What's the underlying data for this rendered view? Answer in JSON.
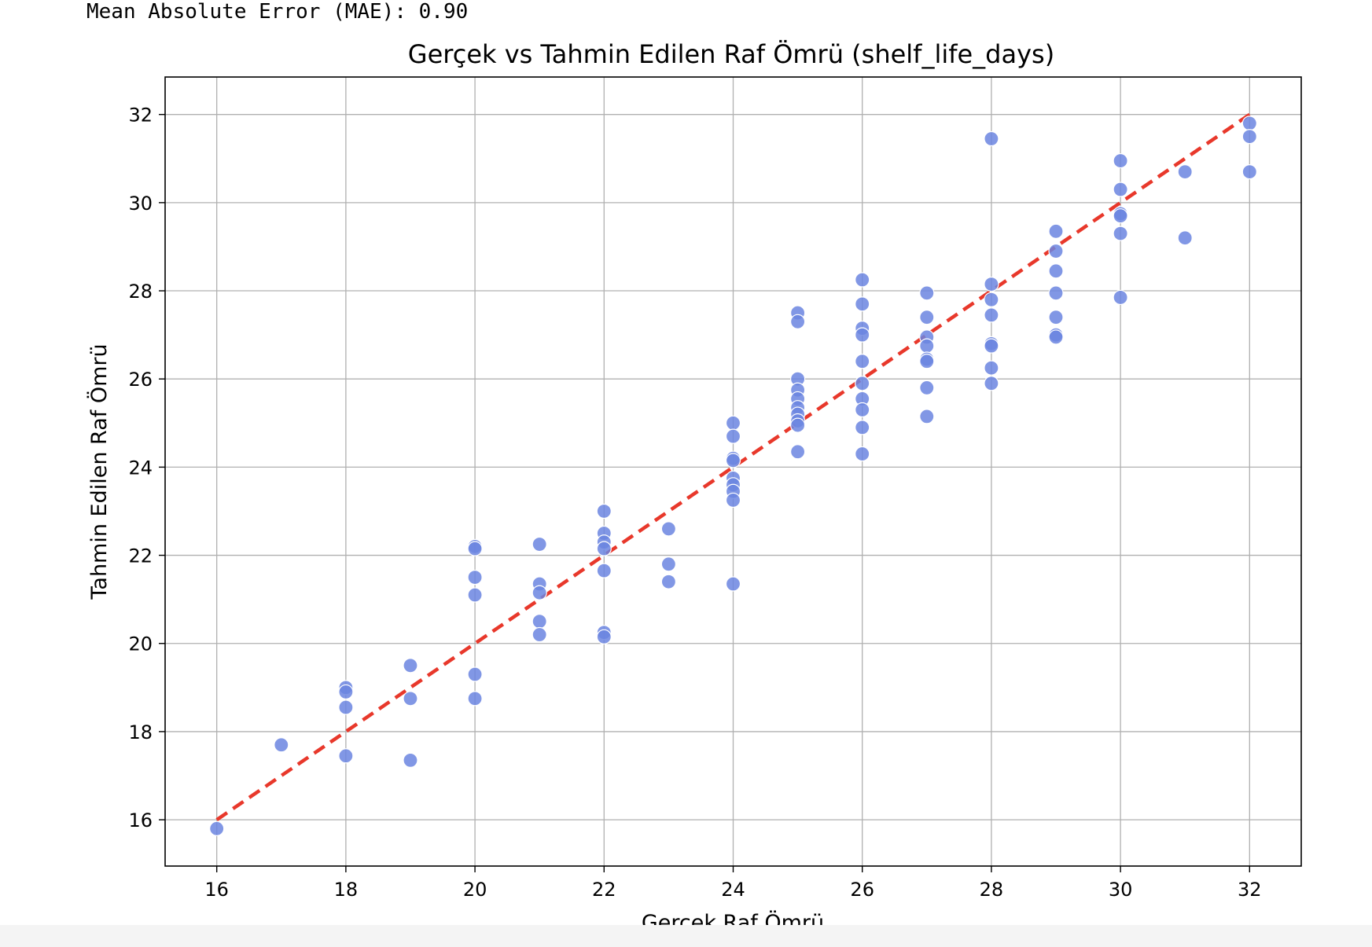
{
  "output": {
    "mae_text": "Mean Absolute Error (MAE): 0.90"
  },
  "colors": {
    "point_fill": "#6b85e0",
    "point_stroke": "#ffffff",
    "ref_line": "#e8382b",
    "grid": "#b0b0b0",
    "axis": "#000000"
  },
  "chart_data": {
    "type": "scatter",
    "title": "Gerçek vs Tahmin Edilen Raf Ömrü (shelf_life_days)",
    "xlabel": "Gerçek Raf Ömrü",
    "ylabel": "Tahmin Edilen Raf Ömrü",
    "xlim": [
      15.2,
      32.8
    ],
    "ylim": [
      14.95,
      32.85
    ],
    "xticks": [
      16,
      18,
      20,
      22,
      24,
      26,
      28,
      30,
      32
    ],
    "yticks": [
      16,
      18,
      20,
      22,
      24,
      26,
      28,
      30,
      32
    ],
    "grid": true,
    "reference_line": {
      "x": [
        16,
        32
      ],
      "y": [
        16,
        32
      ],
      "style": "dashed"
    },
    "points": [
      [
        16,
        15.8
      ],
      [
        17,
        17.7
      ],
      [
        18,
        19.0
      ],
      [
        18,
        18.9
      ],
      [
        18,
        18.55
      ],
      [
        18,
        17.45
      ],
      [
        19,
        19.5
      ],
      [
        19,
        18.75
      ],
      [
        19,
        17.35
      ],
      [
        20,
        22.2
      ],
      [
        20,
        22.15
      ],
      [
        20,
        21.5
      ],
      [
        20,
        21.1
      ],
      [
        20,
        19.3
      ],
      [
        20,
        18.75
      ],
      [
        21,
        22.25
      ],
      [
        21,
        21.35
      ],
      [
        21,
        21.15
      ],
      [
        21,
        20.5
      ],
      [
        21,
        20.2
      ],
      [
        22,
        23.0
      ],
      [
        22,
        22.5
      ],
      [
        22,
        22.3
      ],
      [
        22,
        22.15
      ],
      [
        22,
        21.65
      ],
      [
        22,
        20.25
      ],
      [
        22,
        20.15
      ],
      [
        23,
        22.6
      ],
      [
        23,
        21.8
      ],
      [
        23,
        21.4
      ],
      [
        24,
        25.0
      ],
      [
        24,
        24.7
      ],
      [
        24,
        24.2
      ],
      [
        24,
        24.15
      ],
      [
        24,
        23.75
      ],
      [
        24,
        23.6
      ],
      [
        24,
        23.45
      ],
      [
        24,
        23.25
      ],
      [
        24,
        21.35
      ],
      [
        25,
        27.5
      ],
      [
        25,
        27.3
      ],
      [
        25,
        26.0
      ],
      [
        25,
        25.75
      ],
      [
        25,
        25.55
      ],
      [
        25,
        25.35
      ],
      [
        25,
        25.2
      ],
      [
        25,
        25.05
      ],
      [
        25,
        24.95
      ],
      [
        25,
        24.35
      ],
      [
        26,
        28.25
      ],
      [
        26,
        27.7
      ],
      [
        26,
        27.15
      ],
      [
        26,
        27.0
      ],
      [
        26,
        26.4
      ],
      [
        26,
        25.9
      ],
      [
        26,
        25.55
      ],
      [
        26,
        25.3
      ],
      [
        26,
        24.9
      ],
      [
        26,
        24.3
      ],
      [
        27,
        27.95
      ],
      [
        27,
        27.4
      ],
      [
        27,
        26.95
      ],
      [
        27,
        26.75
      ],
      [
        27,
        26.45
      ],
      [
        27,
        26.4
      ],
      [
        27,
        25.8
      ],
      [
        27,
        25.15
      ],
      [
        28,
        31.45
      ],
      [
        28,
        28.15
      ],
      [
        28,
        27.8
      ],
      [
        28,
        27.45
      ],
      [
        28,
        26.8
      ],
      [
        28,
        26.75
      ],
      [
        28,
        26.25
      ],
      [
        28,
        25.9
      ],
      [
        29,
        29.35
      ],
      [
        29,
        28.9
      ],
      [
        29,
        28.45
      ],
      [
        29,
        27.95
      ],
      [
        29,
        27.4
      ],
      [
        29,
        27.0
      ],
      [
        29,
        26.95
      ],
      [
        30,
        30.95
      ],
      [
        30,
        30.3
      ],
      [
        30,
        29.75
      ],
      [
        30,
        29.7
      ],
      [
        30,
        29.3
      ],
      [
        30,
        27.85
      ],
      [
        31,
        30.7
      ],
      [
        31,
        29.2
      ],
      [
        32,
        31.8
      ],
      [
        32,
        31.5
      ],
      [
        32,
        30.7
      ]
    ]
  }
}
